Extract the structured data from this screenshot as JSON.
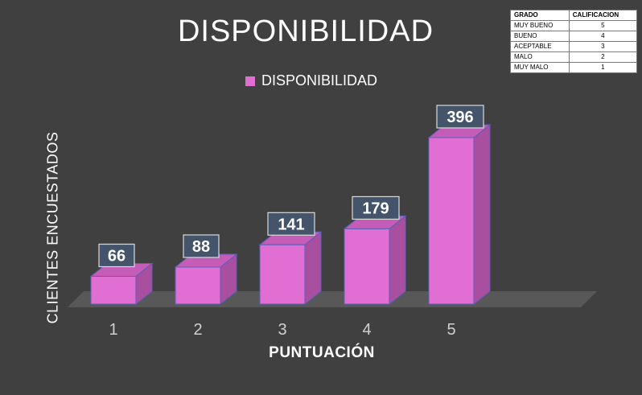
{
  "colors": {
    "background": "#404040",
    "bar_front": "#e06ed3",
    "bar_side": "#a94fa0",
    "bar_top": "#c45cb8",
    "bar_edge": "#5a5fb8",
    "floor": "#585858",
    "label_box": "#44546a",
    "text": "#ffffff",
    "tick_text": "#d0d0d0"
  },
  "chart_data": {
    "type": "bar",
    "title": "DISPONIBILIDAD",
    "xlabel": "PUNTUACIÓN",
    "ylabel": "CLIENTES ENCUESTADOS",
    "categories": [
      "1",
      "2",
      "3",
      "4",
      "5"
    ],
    "series": [
      {
        "name": "DISPONIBILIDAD",
        "values": [
          66,
          88,
          141,
          179,
          396
        ]
      }
    ],
    "ylim": [
      0,
      396
    ],
    "grid": false,
    "legend": "top-center",
    "data_labels": true,
    "style": "3d"
  },
  "legend_table": {
    "headers": [
      "GRADO",
      "CALIFICACION"
    ],
    "rows": [
      [
        "MUY BUENO",
        "5"
      ],
      [
        "BUENO",
        "4"
      ],
      [
        "ACEPTABLE",
        "3"
      ],
      [
        "MALO",
        "2"
      ],
      [
        "MUY MALO",
        "1"
      ]
    ]
  }
}
